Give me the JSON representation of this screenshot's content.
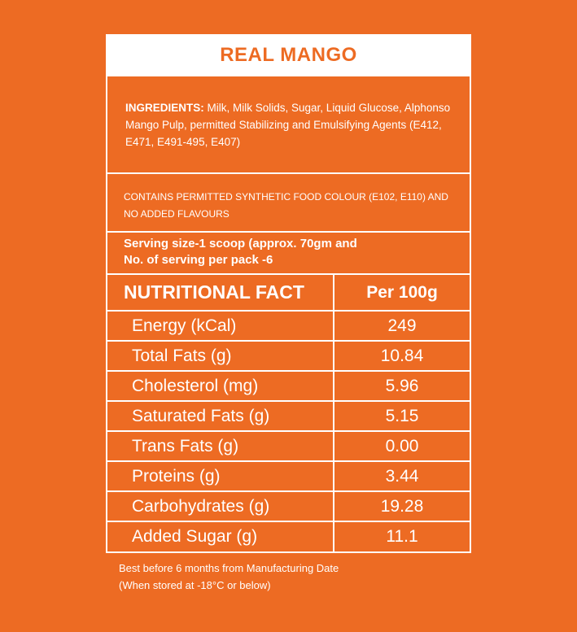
{
  "title": "REAL MANGO",
  "ingredients": {
    "label": "INGREDIENTS:",
    "text": " Milk, Milk Solids, Sugar, Liquid Glucose, Alphonso Mango Pulp, permitted Stabilizing and Emulsifying Agents (E412, E471, E491-495, E407)"
  },
  "contains": "CONTAINS PERMITTED SYNTHETIC FOOD COLOUR (E102, E110)  AND NO ADDED FLAVOURS",
  "serving": {
    "line1": "Serving size-1 scoop (approx. 70gm and",
    "line2": "No. of serving per pack -6"
  },
  "nutrition": {
    "header_name": "NUTRITIONAL FACT",
    "header_value": "Per 100g",
    "rows": [
      {
        "name": "Energy (kCal)",
        "value": "249"
      },
      {
        "name": "Total Fats (g)",
        "value": "10.84"
      },
      {
        "name": "Cholesterol (mg)",
        "value": "5.96"
      },
      {
        "name": "Saturated Fats (g)",
        "value": "5.15"
      },
      {
        "name": "Trans Fats (g)",
        "value": "0.00"
      },
      {
        "name": "Proteins (g)",
        "value": "3.44"
      },
      {
        "name": "Carbohydrates (g)",
        "value": "19.28"
      },
      {
        "name": "Added Sugar (g)",
        "value": "11.1"
      }
    ]
  },
  "footer": {
    "line1": "Best before 6 months from Manufacturing Date",
    "line2": "(When stored at -18°C or below)"
  },
  "colors": {
    "background": "#ed6b23",
    "foreground": "#ffffff"
  }
}
